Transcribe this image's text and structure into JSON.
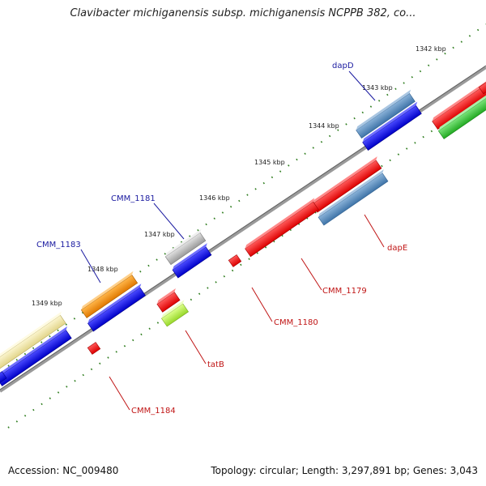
{
  "map": {
    "title": "Clavibacter michiganensis subsp. michiganensis NCPPB 382, co...",
    "accession_text": "Accession: NC_009480",
    "summary_text": "Topology: circular; Length: 3,297,891 bp; Genes: 3,043"
  },
  "ticks": [
    "1342 kbp",
    "1343 kbp",
    "1344 kbp",
    "1345 kbp",
    "1346 kbp",
    "1347 kbp",
    "1348 kbp",
    "1349 kbp"
  ],
  "labels": {
    "dapD": "dapD",
    "cmm1181": "CMM_1181",
    "cmm1183": "CMM_1183",
    "dapE": "dapE",
    "cmm1179": "CMM_1179",
    "cmm1180": "CMM_1180",
    "tatB": "tatB",
    "cmm1184": "CMM_1184"
  },
  "colors": {
    "backbone": "#8a8a8a",
    "dots": "#2e7d1e",
    "blue": "#0b0bd8",
    "red": "#ee1010",
    "steelblue": "#4f86b8",
    "gray": "#b0b0b0",
    "orange": "#f28c10",
    "khaki": "#efe6a0",
    "green": "#3cc63c",
    "yellowgreen": "#b4ec3c",
    "label_blue": "#1a1aa0",
    "label_red": "#c01515"
  }
}
